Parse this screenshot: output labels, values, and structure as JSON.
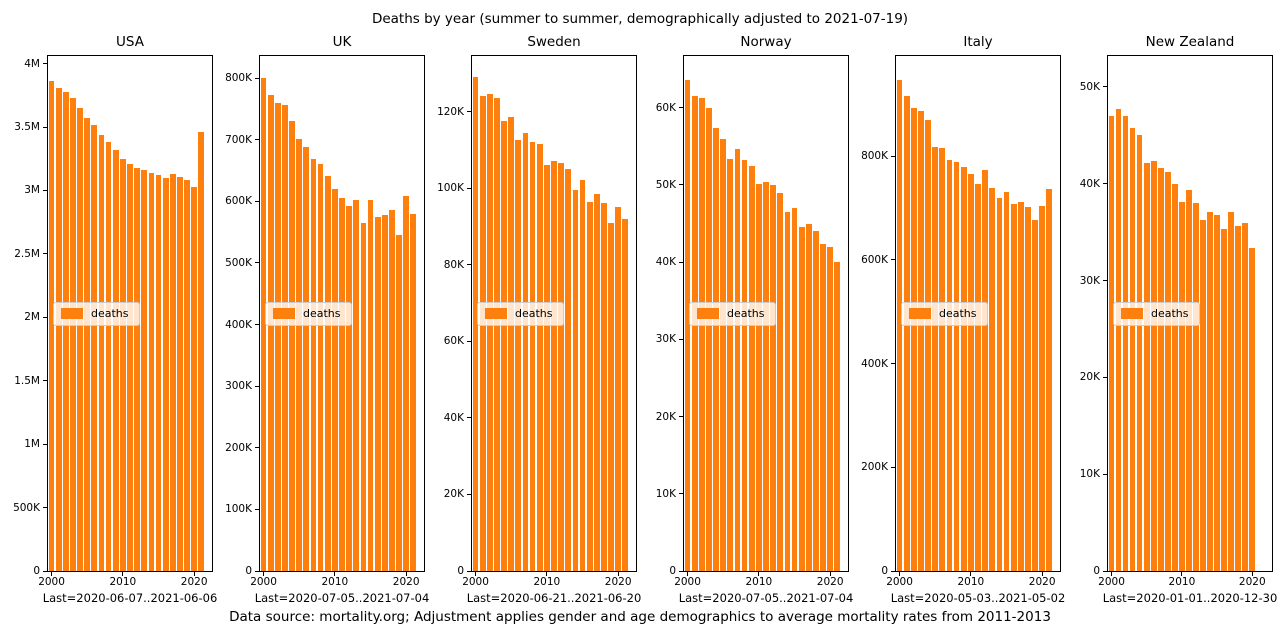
{
  "title": "Deaths by year (summer to summer, demographically adjusted to 2021-07-19)",
  "footer": "Data source: mortality.org; Adjustment applies gender and age demographics to average mortality rates from 2011-2013",
  "legend_label": "deaths",
  "bar_color": "#fd7f0e",
  "chart_data": [
    {
      "type": "bar",
      "title": "USA",
      "legend": "deaths",
      "xlabel": "Last=2020-06-07..2021-06-06",
      "years": [
        2000,
        2001,
        2002,
        2003,
        2004,
        2005,
        2006,
        2007,
        2008,
        2009,
        2010,
        2011,
        2012,
        2013,
        2014,
        2015,
        2016,
        2017,
        2018,
        2019,
        2020,
        2021
      ],
      "values": [
        3860000,
        3810000,
        3780000,
        3730000,
        3650000,
        3570000,
        3520000,
        3440000,
        3380000,
        3320000,
        3250000,
        3210000,
        3180000,
        3160000,
        3140000,
        3120000,
        3100000,
        3130000,
        3110000,
        3080000,
        3030000,
        3460000
      ],
      "ylim": [
        0,
        4060000
      ],
      "xlim": [
        1999.5,
        2022.5
      ],
      "grid": false,
      "yticks": [
        {
          "value": 0,
          "label": "0"
        },
        {
          "value": 500000,
          "label": "500K"
        },
        {
          "value": 1000000,
          "label": "1M"
        },
        {
          "value": 1500000,
          "label": "1.5M"
        },
        {
          "value": 2000000,
          "label": "2M"
        },
        {
          "value": 2500000,
          "label": "2.5M"
        },
        {
          "value": 3000000,
          "label": "3M"
        },
        {
          "value": 3500000,
          "label": "3.5M"
        },
        {
          "value": 4000000,
          "label": "4M"
        }
      ],
      "xticks": [
        {
          "value": 2000,
          "label": "2000"
        },
        {
          "value": 2010,
          "label": "2010"
        },
        {
          "value": 2020,
          "label": "2020"
        }
      ]
    },
    {
      "type": "bar",
      "title": "UK",
      "legend": "deaths",
      "xlabel": "Last=2020-07-05..2021-07-04",
      "years": [
        2000,
        2001,
        2002,
        2003,
        2004,
        2005,
        2006,
        2007,
        2008,
        2009,
        2010,
        2011,
        2012,
        2013,
        2014,
        2015,
        2016,
        2017,
        2018,
        2019,
        2020,
        2021
      ],
      "values": [
        800000,
        772000,
        760000,
        757000,
        731000,
        702000,
        688000,
        669000,
        661000,
        641000,
        620000,
        606000,
        592000,
        603000,
        565000,
        602000,
        575000,
        578000,
        586000,
        545000,
        608000,
        579000
      ],
      "ylim": [
        0,
        836000
      ],
      "xlim": [
        1999.5,
        2022.5
      ],
      "grid": false,
      "yticks": [
        {
          "value": 0,
          "label": "0"
        },
        {
          "value": 100000,
          "label": "100K"
        },
        {
          "value": 200000,
          "label": "200K"
        },
        {
          "value": 300000,
          "label": "300K"
        },
        {
          "value": 400000,
          "label": "400K"
        },
        {
          "value": 500000,
          "label": "500K"
        },
        {
          "value": 600000,
          "label": "600K"
        },
        {
          "value": 700000,
          "label": "700K"
        },
        {
          "value": 800000,
          "label": "800K"
        }
      ],
      "xticks": [
        {
          "value": 2000,
          "label": "2000"
        },
        {
          "value": 2010,
          "label": "2010"
        },
        {
          "value": 2020,
          "label": "2020"
        }
      ]
    },
    {
      "type": "bar",
      "title": "Sweden",
      "legend": "deaths",
      "xlabel": "Last=2020-06-21..2021-06-20",
      "years": [
        2000,
        2001,
        2002,
        2003,
        2004,
        2005,
        2006,
        2007,
        2008,
        2009,
        2010,
        2011,
        2012,
        2013,
        2014,
        2015,
        2016,
        2017,
        2018,
        2019,
        2020,
        2021
      ],
      "values": [
        129000,
        124000,
        124500,
        123500,
        117500,
        118500,
        112500,
        114500,
        112000,
        111500,
        106000,
        107000,
        106500,
        105000,
        99500,
        102000,
        96500,
        98500,
        96000,
        91000,
        95000,
        92000
      ],
      "ylim": [
        0,
        134500
      ],
      "xlim": [
        1999.5,
        2022.5
      ],
      "grid": false,
      "yticks": [
        {
          "value": 0,
          "label": "0"
        },
        {
          "value": 20000,
          "label": "20K"
        },
        {
          "value": 40000,
          "label": "40K"
        },
        {
          "value": 60000,
          "label": "60K"
        },
        {
          "value": 80000,
          "label": "80K"
        },
        {
          "value": 100000,
          "label": "100K"
        },
        {
          "value": 120000,
          "label": "120K"
        }
      ],
      "xticks": [
        {
          "value": 2000,
          "label": "2000"
        },
        {
          "value": 2010,
          "label": "2010"
        },
        {
          "value": 2020,
          "label": "2020"
        }
      ]
    },
    {
      "type": "bar",
      "title": "Norway",
      "legend": "deaths",
      "xlabel": "Last=2020-07-05..2021-07-04",
      "years": [
        2000,
        2001,
        2002,
        2003,
        2004,
        2005,
        2006,
        2007,
        2008,
        2009,
        2010,
        2011,
        2012,
        2013,
        2014,
        2015,
        2016,
        2017,
        2018,
        2019,
        2020,
        2021
      ],
      "values": [
        63600,
        61500,
        61200,
        60000,
        57400,
        55900,
        53300,
        54700,
        53200,
        52500,
        50100,
        50400,
        50000,
        48900,
        46500,
        47000,
        44500,
        45000,
        44100,
        42400,
        42000,
        40000
      ],
      "ylim": [
        0,
        66700
      ],
      "xlim": [
        1999.5,
        2022.5
      ],
      "grid": false,
      "yticks": [
        {
          "value": 0,
          "label": "0"
        },
        {
          "value": 10000,
          "label": "10K"
        },
        {
          "value": 20000,
          "label": "20K"
        },
        {
          "value": 30000,
          "label": "30K"
        },
        {
          "value": 40000,
          "label": "40K"
        },
        {
          "value": 50000,
          "label": "50K"
        },
        {
          "value": 60000,
          "label": "60K"
        }
      ],
      "xticks": [
        {
          "value": 2000,
          "label": "2000"
        },
        {
          "value": 2010,
          "label": "2010"
        },
        {
          "value": 2020,
          "label": "2020"
        }
      ]
    },
    {
      "type": "bar",
      "title": "Italy",
      "legend": "deaths",
      "xlabel": "Last=2020-05-03..2021-05-02",
      "years": [
        2000,
        2001,
        2002,
        2003,
        2004,
        2005,
        2006,
        2007,
        2008,
        2009,
        2010,
        2011,
        2012,
        2013,
        2014,
        2015,
        2016,
        2017,
        2018,
        2019,
        2020,
        2021
      ],
      "values": [
        947000,
        916000,
        892000,
        887000,
        869000,
        818000,
        815000,
        792000,
        788000,
        779000,
        765000,
        746000,
        773000,
        738000,
        719000,
        730000,
        708000,
        712000,
        701000,
        677000,
        704000,
        737000
      ],
      "ylim": [
        0,
        993000
      ],
      "xlim": [
        1999.5,
        2022.5
      ],
      "grid": false,
      "yticks": [
        {
          "value": 0,
          "label": "0"
        },
        {
          "value": 200000,
          "label": "200K"
        },
        {
          "value": 400000,
          "label": "400K"
        },
        {
          "value": 600000,
          "label": "600K"
        },
        {
          "value": 800000,
          "label": "800K"
        }
      ],
      "xticks": [
        {
          "value": 2000,
          "label": "2000"
        },
        {
          "value": 2010,
          "label": "2010"
        },
        {
          "value": 2020,
          "label": "2020"
        }
      ]
    },
    {
      "type": "bar",
      "title": "New Zealand",
      "legend": "deaths",
      "xlabel": "Last=2020-01-01..2020-12-30",
      "years": [
        2000,
        2001,
        2002,
        2003,
        2004,
        2005,
        2006,
        2007,
        2008,
        2009,
        2010,
        2011,
        2012,
        2013,
        2014,
        2015,
        2016,
        2017,
        2018,
        2019,
        2020
      ],
      "values": [
        47000,
        47700,
        47000,
        45800,
        45000,
        42100,
        42400,
        41600,
        41200,
        40000,
        38100,
        39400,
        38000,
        36300,
        37100,
        36800,
        35300,
        37100,
        35600,
        35900,
        33400
      ],
      "ylim": [
        0,
        53200
      ],
      "xlim": [
        1999.5,
        2022.8
      ],
      "grid": false,
      "yticks": [
        {
          "value": 0,
          "label": "0"
        },
        {
          "value": 10000,
          "label": "10K"
        },
        {
          "value": 20000,
          "label": "20K"
        },
        {
          "value": 30000,
          "label": "30K"
        },
        {
          "value": 40000,
          "label": "40K"
        },
        {
          "value": 50000,
          "label": "50K"
        }
      ],
      "xticks": [
        {
          "value": 2000,
          "label": "2000"
        },
        {
          "value": 2010,
          "label": "2010"
        },
        {
          "value": 2020,
          "label": "2020"
        }
      ]
    }
  ]
}
